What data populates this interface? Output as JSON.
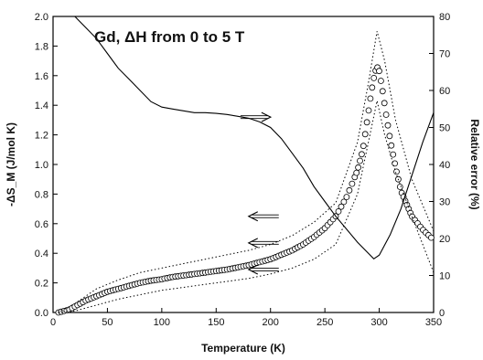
{
  "chart_data": {
    "type": "line",
    "title": "Gd, ΔH from 0 to 5 T",
    "xlabel": "Temperature (K)",
    "ylabel_left": "-ΔS_M (J/mol K)",
    "ylabel_right": "Relative error (%)",
    "xlim": [
      0,
      350
    ],
    "ylim_left": [
      0,
      2.0
    ],
    "ylim_right": [
      0,
      80
    ],
    "x_ticks": [
      "0",
      "50",
      "100",
      "150",
      "200",
      "250",
      "300",
      "350"
    ],
    "y_ticks_left": [
      "0.0",
      "0.2",
      "0.4",
      "0.6",
      "0.8",
      "1.0",
      "1.2",
      "1.4",
      "1.6",
      "1.8",
      "2.0"
    ],
    "y_ticks_right": [
      "0",
      "10",
      "20",
      "30",
      "40",
      "50",
      "60",
      "70",
      "80"
    ],
    "grid": false,
    "series": [
      {
        "style": "open-circles",
        "axis": "left",
        "x": [
          5,
          10,
          15,
          20,
          30,
          40,
          50,
          60,
          70,
          80,
          90,
          100,
          110,
          120,
          130,
          140,
          150,
          160,
          170,
          180,
          190,
          200,
          210,
          220,
          230,
          240,
          250,
          260,
          270,
          280,
          285,
          290,
          293,
          296,
          298,
          300,
          303,
          306,
          310,
          315,
          320,
          330,
          340,
          350
        ],
        "y": [
          0.0,
          0.01,
          0.02,
          0.04,
          0.08,
          0.11,
          0.14,
          0.16,
          0.18,
          0.2,
          0.215,
          0.225,
          0.24,
          0.25,
          0.26,
          0.27,
          0.28,
          0.29,
          0.305,
          0.32,
          0.34,
          0.36,
          0.39,
          0.42,
          0.46,
          0.51,
          0.57,
          0.65,
          0.78,
          0.96,
          1.1,
          1.35,
          1.5,
          1.62,
          1.66,
          1.63,
          1.5,
          1.35,
          1.17,
          0.98,
          0.82,
          0.65,
          0.56,
          0.49
        ]
      },
      {
        "style": "dotted",
        "axis": "left",
        "x": [
          5,
          20,
          40,
          60,
          80,
          100,
          120,
          140,
          160,
          180,
          200,
          220,
          240,
          260,
          280,
          290,
          298,
          305,
          315,
          330,
          350
        ],
        "y": [
          0.0,
          0.06,
          0.16,
          0.22,
          0.27,
          0.3,
          0.33,
          0.36,
          0.39,
          0.42,
          0.46,
          0.52,
          0.61,
          0.74,
          1.15,
          1.55,
          1.9,
          1.7,
          1.3,
          0.9,
          0.55
        ]
      },
      {
        "style": "dotted",
        "axis": "left",
        "x": [
          5,
          20,
          40,
          60,
          80,
          100,
          120,
          140,
          160,
          180,
          200,
          220,
          240,
          260,
          280,
          290,
          298,
          305,
          315,
          330,
          350
        ],
        "y": [
          0.0,
          0.01,
          0.05,
          0.09,
          0.12,
          0.15,
          0.17,
          0.19,
          0.21,
          0.23,
          0.26,
          0.3,
          0.36,
          0.46,
          0.8,
          1.15,
          1.43,
          1.2,
          0.95,
          0.65,
          0.27
        ]
      },
      {
        "style": "solid",
        "axis": "right",
        "x": [
          20,
          30,
          40,
          50,
          60,
          70,
          80,
          90,
          100,
          110,
          120,
          130,
          140,
          150,
          160,
          170,
          180,
          190,
          200,
          210,
          220,
          230,
          240,
          250,
          260,
          270,
          280,
          290,
          295,
          300,
          310,
          320,
          330,
          340,
          350
        ],
        "y": [
          80,
          77,
          74,
          70,
          66,
          63,
          60,
          57,
          55.5,
          55,
          54.5,
          54,
          54,
          53.8,
          53.5,
          53,
          52.5,
          51.5,
          50,
          47,
          43,
          39,
          34,
          30,
          26,
          22.5,
          19,
          16,
          14.5,
          15.5,
          21,
          28,
          37,
          46,
          54
        ]
      }
    ],
    "arrows": [
      {
        "x": 185,
        "y": 1.32,
        "direction": "right"
      },
      {
        "x": 195,
        "y": 0.65,
        "direction": "left"
      },
      {
        "x": 195,
        "y": 0.47,
        "direction": "left"
      },
      {
        "x": 195,
        "y": 0.29,
        "direction": "left"
      }
    ]
  }
}
